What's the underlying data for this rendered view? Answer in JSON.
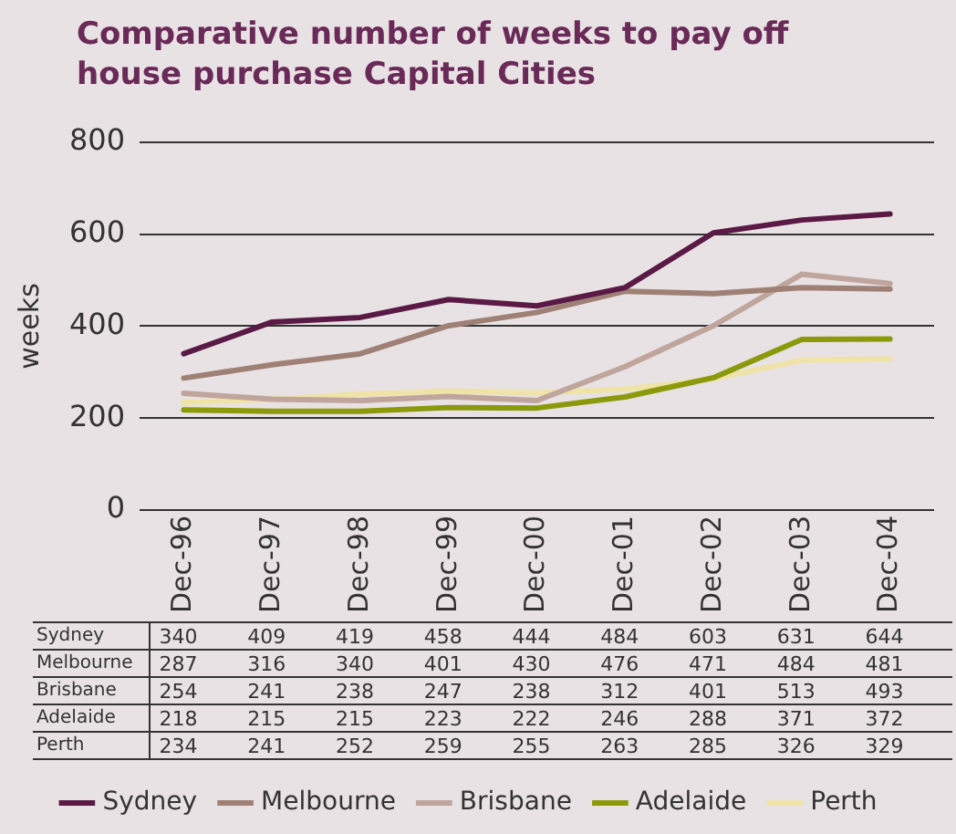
{
  "chart_data": {
    "type": "line",
    "title": "Comparative number of weeks to pay off house purchase Capital Cities",
    "ylabel": "weeks",
    "categories": [
      "Dec-96",
      "Dec-97",
      "Dec-98",
      "Dec-99",
      "Dec-00",
      "Dec-01",
      "Dec-02",
      "Dec-03",
      "Dec-04"
    ],
    "series": [
      {
        "name": "Sydney",
        "color": "#5a1a45",
        "values": [
          340,
          409,
          419,
          458,
          444,
          484,
          603,
          631,
          644
        ]
      },
      {
        "name": "Melbourne",
        "color": "#9e8075",
        "values": [
          287,
          316,
          340,
          401,
          430,
          476,
          471,
          484,
          481
        ]
      },
      {
        "name": "Brisbane",
        "color": "#bfa59c",
        "values": [
          254,
          241,
          238,
          247,
          238,
          312,
          401,
          513,
          493
        ]
      },
      {
        "name": "Adelaide",
        "color": "#8a9a0a",
        "values": [
          218,
          215,
          215,
          223,
          222,
          246,
          288,
          371,
          372
        ]
      },
      {
        "name": "Perth",
        "color": "#efe3a8",
        "values": [
          234,
          241,
          252,
          259,
          255,
          263,
          285,
          326,
          329
        ]
      }
    ],
    "ylim": [
      0,
      800
    ],
    "yticks": [
      0,
      200,
      400,
      600,
      800
    ],
    "grid": "y",
    "legend": "bottom",
    "marker": "none",
    "line_style": "solid",
    "data_labels": true
  }
}
